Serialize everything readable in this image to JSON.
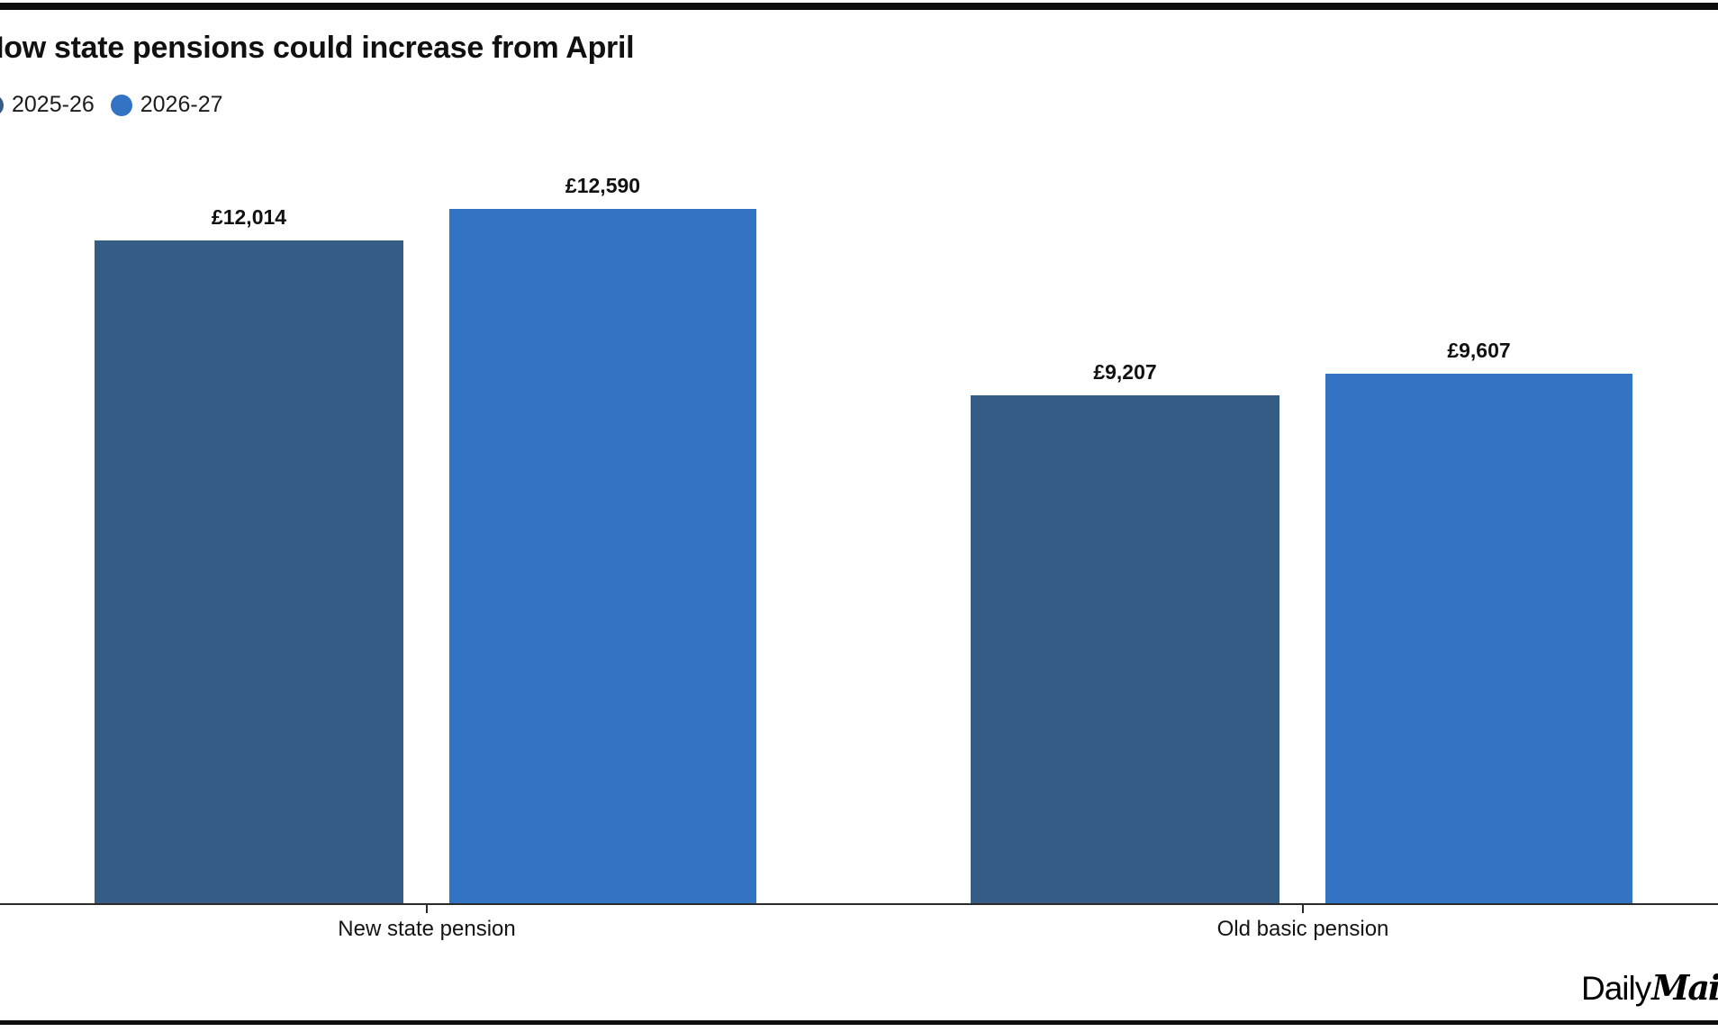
{
  "page": {
    "background": "#ffffff",
    "top_band_color": "#0d0d0d",
    "bottom_band_color": "#0d0d0d"
  },
  "chart_data": {
    "type": "bar",
    "title": "How state pensions could increase from April",
    "title_note": "title is clipped at the left edge of the image, rendering as 'ow state pensions could increase from April'",
    "legend_position": "top-left",
    "grid": false,
    "value_axis_visible": false,
    "ylim": [
      0,
      12590
    ],
    "baseline_color": "#2b2b2b",
    "categories": [
      "New state pension",
      "Old basic pension"
    ],
    "series": [
      {
        "name": "2025-26",
        "color": "#355C84"
      },
      {
        "name": "2026-27",
        "color": "#3373C4"
      }
    ],
    "bars": [
      {
        "category": "New state pension",
        "series": "2025-26",
        "series_index": 0,
        "value": 12014,
        "label": "£12,014"
      },
      {
        "category": "New state pension",
        "series": "2026-27",
        "series_index": 1,
        "value": 12590,
        "label": "£12,590"
      },
      {
        "category": "Old basic pension",
        "series": "2025-26",
        "series_index": 0,
        "value": 9207,
        "label": "£9,207"
      },
      {
        "category": "Old basic pension",
        "series": "2026-27",
        "series_index": 1,
        "value": 9607,
        "label": "£9,607"
      }
    ]
  },
  "branding": {
    "prefix": "Daily",
    "suffix": "Mail",
    "note": "logo is clipped at the right edge of the image"
  }
}
